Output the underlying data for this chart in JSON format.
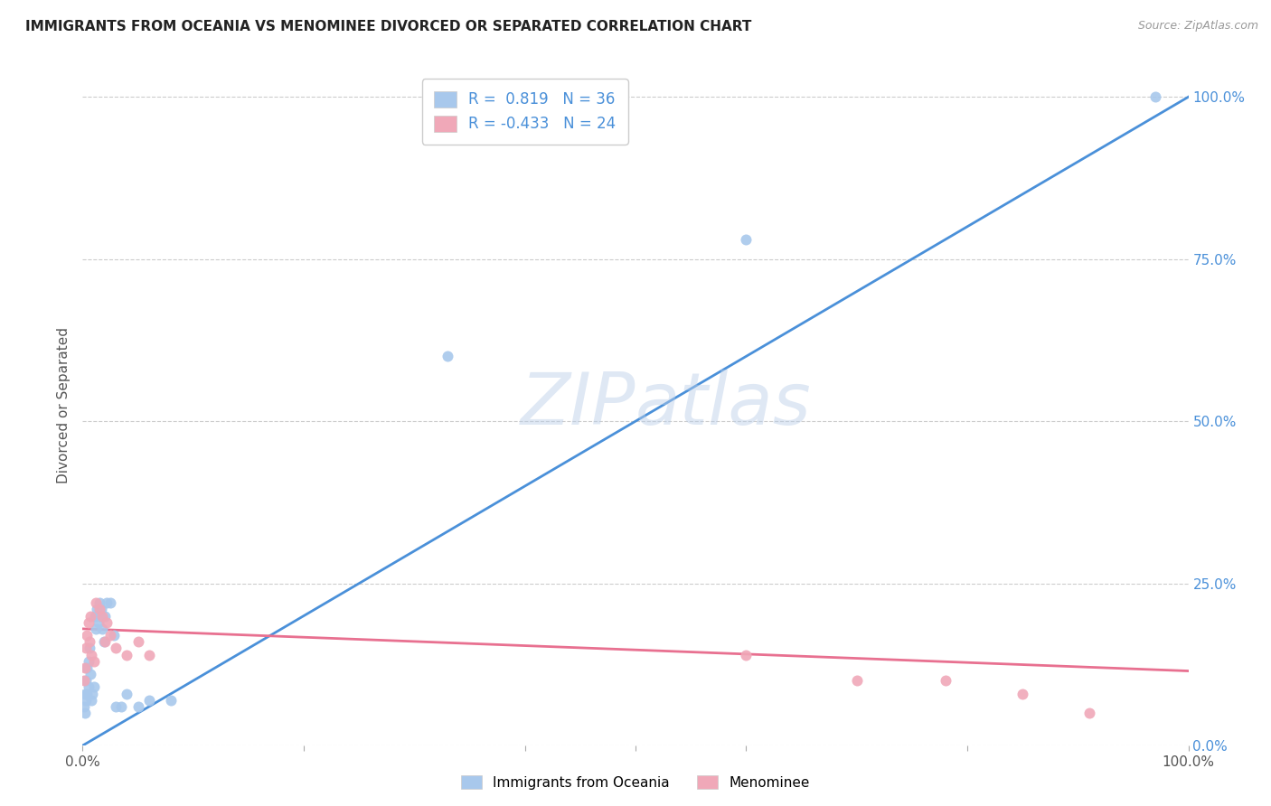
{
  "title": "IMMIGRANTS FROM OCEANIA VS MENOMINEE DIVORCED OR SEPARATED CORRELATION CHART",
  "source": "Source: ZipAtlas.com",
  "ylabel": "Divorced or Separated",
  "right_yticks": [
    "0.0%",
    "25.0%",
    "50.0%",
    "75.0%",
    "100.0%"
  ],
  "right_ytick_vals": [
    0.0,
    0.25,
    0.5,
    0.75,
    1.0
  ],
  "legend_blue_R": "0.819",
  "legend_blue_N": "36",
  "legend_pink_R": "-0.433",
  "legend_pink_N": "24",
  "blue_color": "#A8C8EC",
  "pink_color": "#F0A8B8",
  "blue_line_color": "#4A90D9",
  "pink_line_color": "#E87090",
  "watermark_zip": "ZIP",
  "watermark_atlas": "atlas",
  "blue_scatter_x": [
    0.001,
    0.002,
    0.002,
    0.003,
    0.003,
    0.004,
    0.004,
    0.005,
    0.005,
    0.006,
    0.007,
    0.008,
    0.009,
    0.01,
    0.011,
    0.012,
    0.013,
    0.014,
    0.015,
    0.016,
    0.017,
    0.018,
    0.019,
    0.02,
    0.022,
    0.025,
    0.028,
    0.03,
    0.035,
    0.04,
    0.05,
    0.06,
    0.08,
    0.33,
    0.6,
    0.97
  ],
  "blue_scatter_y": [
    0.06,
    0.05,
    0.08,
    0.07,
    0.1,
    0.08,
    0.12,
    0.09,
    0.13,
    0.15,
    0.11,
    0.07,
    0.08,
    0.09,
    0.2,
    0.18,
    0.21,
    0.19,
    0.22,
    0.2,
    0.21,
    0.18,
    0.16,
    0.2,
    0.22,
    0.22,
    0.17,
    0.06,
    0.06,
    0.08,
    0.06,
    0.07,
    0.07,
    0.6,
    0.78,
    1.0
  ],
  "pink_scatter_x": [
    0.001,
    0.002,
    0.003,
    0.004,
    0.005,
    0.006,
    0.007,
    0.008,
    0.01,
    0.012,
    0.015,
    0.018,
    0.02,
    0.022,
    0.025,
    0.03,
    0.04,
    0.05,
    0.06,
    0.6,
    0.7,
    0.78,
    0.85,
    0.91
  ],
  "pink_scatter_y": [
    0.1,
    0.12,
    0.15,
    0.17,
    0.19,
    0.16,
    0.2,
    0.14,
    0.13,
    0.22,
    0.21,
    0.2,
    0.16,
    0.19,
    0.17,
    0.15,
    0.14,
    0.16,
    0.14,
    0.14,
    0.1,
    0.1,
    0.08,
    0.05
  ],
  "blue_line_x": [
    0.0,
    1.0
  ],
  "blue_line_y": [
    0.0,
    1.0
  ],
  "pink_line_x": [
    0.0,
    1.0
  ],
  "pink_line_y": [
    0.18,
    0.115
  ],
  "xmin": 0.0,
  "xmax": 1.0,
  "ymin": 0.0,
  "ymax": 1.05,
  "background_color": "#FFFFFF",
  "grid_color": "#CCCCCC",
  "legend_blue_marker_color": "#A8C8EC",
  "legend_pink_marker_color": "#F0A8B8"
}
